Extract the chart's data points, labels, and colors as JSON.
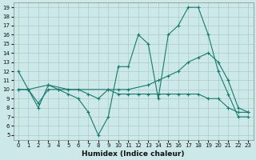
{
  "xlabel": "Humidex (Indice chaleur)",
  "bg_color": "#cce8e8",
  "grid_color": "#aacccc",
  "line_color": "#1a7a6e",
  "xlim": [
    -0.5,
    23.5
  ],
  "ylim": [
    4.5,
    19.5
  ],
  "xticks": [
    0,
    1,
    2,
    3,
    4,
    5,
    6,
    7,
    8,
    9,
    10,
    11,
    12,
    13,
    14,
    15,
    16,
    17,
    18,
    19,
    20,
    21,
    22,
    23
  ],
  "yticks": [
    5,
    6,
    7,
    8,
    9,
    10,
    11,
    12,
    13,
    14,
    15,
    16,
    17,
    18,
    19
  ],
  "line1_x": [
    0,
    1,
    2,
    3,
    4,
    5,
    6,
    7,
    8,
    9,
    10,
    11,
    12,
    13,
    14,
    15,
    16,
    17,
    18,
    19,
    20,
    21,
    22,
    23
  ],
  "line1_y": [
    12,
    10,
    8,
    10.5,
    10,
    9.5,
    9,
    7.5,
    5,
    7,
    12.5,
    12.5,
    16,
    15,
    9,
    16,
    17,
    19,
    19,
    16,
    12,
    9.5,
    7,
    7
  ],
  "line2_x": [
    0,
    1,
    3,
    5,
    9,
    10,
    11,
    13,
    14,
    15,
    16,
    17,
    18,
    19,
    20,
    21,
    22,
    23
  ],
  "line2_y": [
    10,
    10,
    10.5,
    10,
    10,
    10,
    10,
    10.5,
    11,
    11.5,
    12,
    13,
    13.5,
    14,
    13,
    11,
    8,
    7.5
  ],
  "line3_x": [
    0,
    1,
    2,
    3,
    4,
    5,
    6,
    7,
    8,
    9,
    10,
    11,
    12,
    13,
    14,
    15,
    16,
    17,
    18,
    19,
    20,
    21,
    22,
    23
  ],
  "line3_y": [
    10,
    10,
    8.5,
    10,
    10,
    10,
    10,
    9.5,
    9,
    10,
    9.5,
    9.5,
    9.5,
    9.5,
    9.5,
    9.5,
    9.5,
    9.5,
    9.5,
    9,
    9,
    8,
    7.5,
    7.5
  ]
}
